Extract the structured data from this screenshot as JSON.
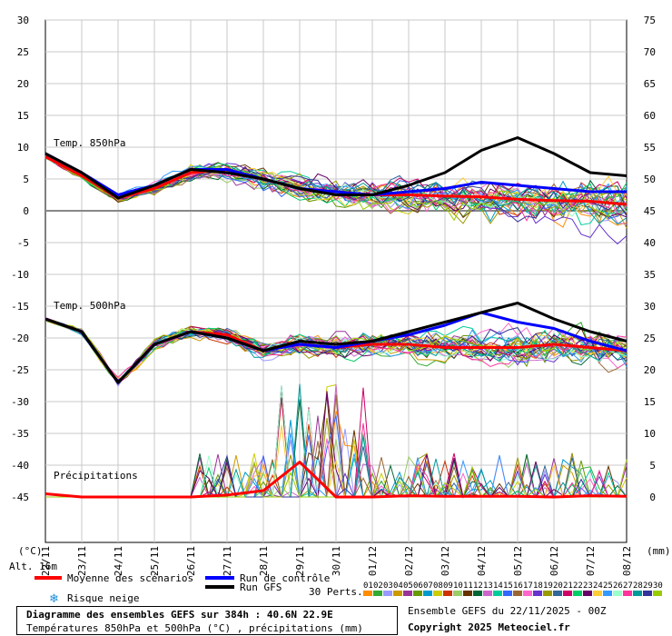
{
  "footer": {
    "title": "Diagramme des ensembles GEFS sur 384h : 40.6N 22.9E",
    "subtitle": "Températures 850hPa et 500hPa (°C) , précipitations (mm)",
    "run_date": "Ensemble GEFS du 22/11/2025 - 00Z",
    "copyright": "Copyright 2025 Meteociel.fr"
  },
  "altitude_label": "Alt. 16m",
  "legend": {
    "mean": "Moyenne des scénarios",
    "control": "Run de contrôle",
    "gfs": "Run GFS",
    "snow": "Risque neige",
    "perts": "30 Perts.",
    "mean_color": "#ff0000",
    "control_color": "#0000ff",
    "gfs_color": "#000000",
    "snow_icon": "snowflake-icon",
    "perts_codes": [
      "01",
      "02",
      "03",
      "04",
      "05",
      "06",
      "07",
      "08",
      "09",
      "10",
      "11",
      "12",
      "13",
      "14",
      "15",
      "16",
      "17",
      "18",
      "19",
      "20",
      "21",
      "22",
      "23",
      "24",
      "25",
      "26",
      "27",
      "28",
      "29",
      "30"
    ],
    "perts_colors": [
      "#ff8c00",
      "#33aa33",
      "#9999ff",
      "#cc9900",
      "#993399",
      "#669900",
      "#0099cc",
      "#cccc00",
      "#cc3300",
      "#99cc66",
      "#663300",
      "#006633",
      "#cc66cc",
      "#00cc99",
      "#3366ff",
      "#996633",
      "#ff66cc",
      "#6633cc",
      "#999900",
      "#336699",
      "#cc0066",
      "#00cc66",
      "#660066",
      "#ffcc33",
      "#3399ff",
      "#99ffcc",
      "#ff3399",
      "#009999",
      "#333399",
      "#99cc00"
    ]
  },
  "chart_data": {
    "type": "line",
    "x": [
      "22/11",
      "23/11",
      "24/11",
      "25/11",
      "26/11",
      "27/11",
      "28/11",
      "29/11",
      "30/11",
      "01/12",
      "02/12",
      "03/12",
      "04/12",
      "05/12",
      "06/12",
      "07/12",
      "08/12"
    ],
    "left_axis": {
      "unit": "(°C)",
      "ticks": [
        30,
        25,
        20,
        15,
        10,
        5,
        0,
        -5,
        -10,
        -15,
        -20,
        -25,
        -30,
        -35,
        -40,
        -45
      ]
    },
    "right_axis": {
      "unit": "(mm)",
      "ticks": [
        75,
        70,
        65,
        60,
        55,
        50,
        45,
        40,
        35,
        30,
        25,
        20,
        15,
        10,
        5,
        0
      ]
    },
    "annotations": [
      "Temp. 850hPa",
      "Temp. 500hPa",
      "Précipitations"
    ],
    "series": [
      {
        "name": "Moyenne des scénarios",
        "group": "t850",
        "values": [
          8.5,
          5.5,
          2.0,
          3.5,
          6.0,
          6.5,
          5.0,
          3.5,
          3.0,
          2.5,
          2.5,
          2.3,
          2.2,
          1.8,
          1.6,
          1.5,
          1.0
        ],
        "color": "#ff0000"
      },
      {
        "name": "Run de contrôle",
        "group": "t850",
        "values": [
          9.0,
          6.0,
          2.5,
          4.0,
          6.5,
          6.5,
          5.0,
          3.5,
          3.0,
          2.5,
          3.0,
          3.5,
          4.5,
          4.0,
          3.5,
          3.0,
          3.0
        ],
        "color": "#0000ff"
      },
      {
        "name": "Run GFS",
        "group": "t850",
        "values": [
          9.0,
          6.0,
          2.0,
          4.0,
          6.5,
          6.0,
          5.0,
          3.5,
          2.5,
          2.5,
          4.0,
          6.0,
          9.5,
          11.5,
          9.0,
          6.0,
          5.5
        ],
        "color": "#000000"
      },
      {
        "name": "Moyenne des scénarios",
        "group": "t500",
        "values": [
          -17.0,
          -19.0,
          -27.0,
          -21.0,
          -19.0,
          -19.5,
          -22.0,
          -21.0,
          -21.5,
          -21.0,
          -21.0,
          -21.5,
          -21.5,
          -21.5,
          -21.0,
          -21.5,
          -22.0
        ],
        "color": "#ff0000"
      },
      {
        "name": "Run de contrôle",
        "group": "t500",
        "values": [
          -17.0,
          -19.0,
          -27.0,
          -21.0,
          -19.0,
          -20.0,
          -22.0,
          -21.0,
          -21.5,
          -20.5,
          -19.5,
          -18.0,
          -16.0,
          -17.5,
          -18.5,
          -20.5,
          -22.0
        ],
        "color": "#0000ff"
      },
      {
        "name": "Run GFS",
        "group": "t500",
        "values": [
          -17.0,
          -19.0,
          -27.0,
          -21.0,
          -19.0,
          -20.0,
          -22.0,
          -20.5,
          -21.0,
          -20.5,
          -19.0,
          -17.5,
          -16.0,
          -14.5,
          -17.0,
          -19.0,
          -20.5
        ],
        "color": "#000000"
      },
      {
        "name": "Moyenne des scénarios",
        "group": "precip",
        "values": [
          0.5,
          0.0,
          0.0,
          0.0,
          0.0,
          0.3,
          1.0,
          5.5,
          0.0,
          0.0,
          0.2,
          0.1,
          0.1,
          0.1,
          0.0,
          0.2,
          0.1
        ],
        "color": "#ff0000"
      }
    ]
  }
}
